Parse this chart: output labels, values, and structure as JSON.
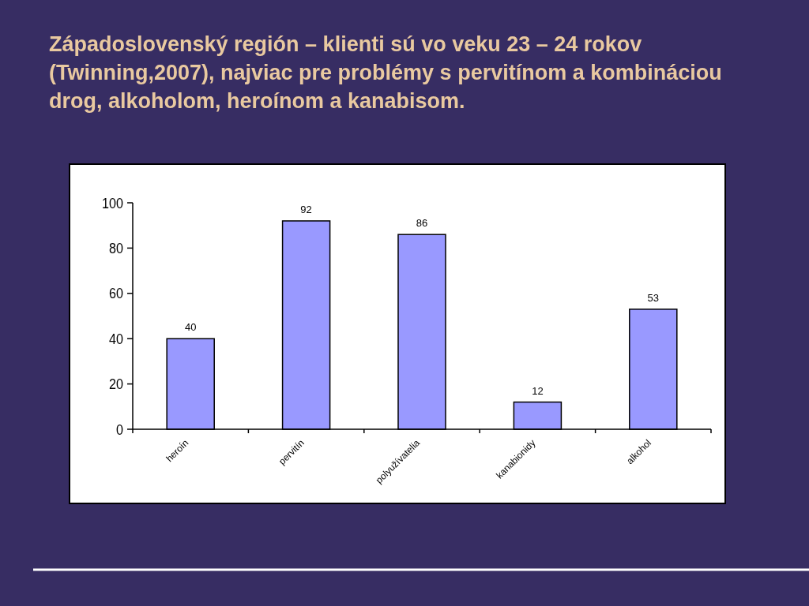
{
  "chart_data": {
    "type": "bar",
    "title": "Západoslovenský región – klienti sú vo veku 23 – 24 rokov (Twinning,2007), najviac pre problémy s pervitínom a kombináciou drog, alkoholom, heroínom a kanabisom.",
    "categories": [
      "heroín",
      "pervitín",
      "polyužívatelia",
      "kanabionidy",
      "alkohol"
    ],
    "values": [
      40,
      92,
      86,
      12,
      53
    ],
    "color": "#9999ff",
    "ylim": [
      0,
      100
    ],
    "yticks": [
      0,
      20,
      40,
      60,
      80,
      100
    ],
    "grid": false,
    "data_labels": true
  }
}
